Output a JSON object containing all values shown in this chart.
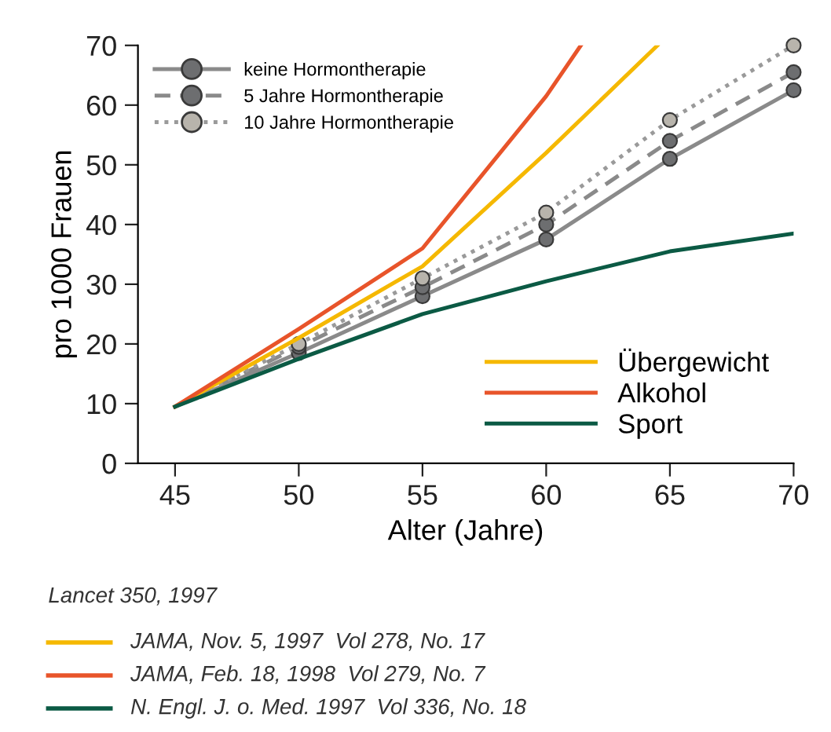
{
  "chart_data": {
    "type": "line",
    "xlabel": "Alter (Jahre)",
    "ylabel": "pro 1000 Frauen",
    "xlim": [
      43.5,
      70
    ],
    "xticks": [
      45,
      50,
      55,
      60,
      65,
      70
    ],
    "ylim": [
      0,
      70
    ],
    "yticks": [
      0,
      10,
      20,
      30,
      40,
      50,
      60,
      70
    ],
    "grid": false,
    "legend": "top left",
    "series": [
      {
        "name": "keine Hormontherapie",
        "color": "#8a8a8a",
        "marker": "circle",
        "line_style": "solid",
        "x": [
          45,
          50,
          55,
          60,
          65,
          70
        ],
        "values": [
          9.5,
          18.5,
          28,
          37.5,
          51,
          62.5
        ]
      },
      {
        "name": "5 Jahre Hormontherapie",
        "color": "#8a8a8a",
        "marker": "circle",
        "line_style": "dashed",
        "x": [
          45,
          50,
          55,
          60,
          65,
          70
        ],
        "values": [
          9.5,
          19.5,
          29.5,
          40,
          54,
          65.5
        ]
      },
      {
        "name": "10 Jahre Hormontherapie",
        "color": "#9a9a9a",
        "marker": "circle",
        "line_style": "dotted",
        "x": [
          45,
          50,
          55,
          60,
          65,
          70
        ],
        "values": [
          9.5,
          20,
          31,
          42,
          57.5,
          70
        ]
      },
      {
        "name": "Übergewicht",
        "color": "#f5b800",
        "marker": "none",
        "line_style": "solid",
        "x": [
          45,
          50,
          55,
          60,
          64.5
        ],
        "values": [
          9.5,
          21,
          33,
          52,
          70
        ]
      },
      {
        "name": "Alkohol",
        "color": "#e8542a",
        "marker": "none",
        "line_style": "solid",
        "x": [
          45,
          50,
          55,
          60,
          61.4
        ],
        "values": [
          9.5,
          22.5,
          36,
          61.5,
          70
        ]
      },
      {
        "name": "Sport",
        "color": "#0b5a44",
        "marker": "none",
        "line_style": "solid",
        "x": [
          45,
          50,
          55,
          60,
          65,
          70
        ],
        "values": [
          9.5,
          17.5,
          25,
          30.5,
          35.5,
          38.5
        ]
      }
    ],
    "annotations": [
      "Lancet 350, 1997",
      "JAMA, Nov. 5, 1997  Vol 278, No. 17",
      "JAMA, Feb. 18, 1998  Vol 279, No. 7",
      "N. Engl. J. o. Med. 1997  Vol 336, No. 18"
    ]
  }
}
